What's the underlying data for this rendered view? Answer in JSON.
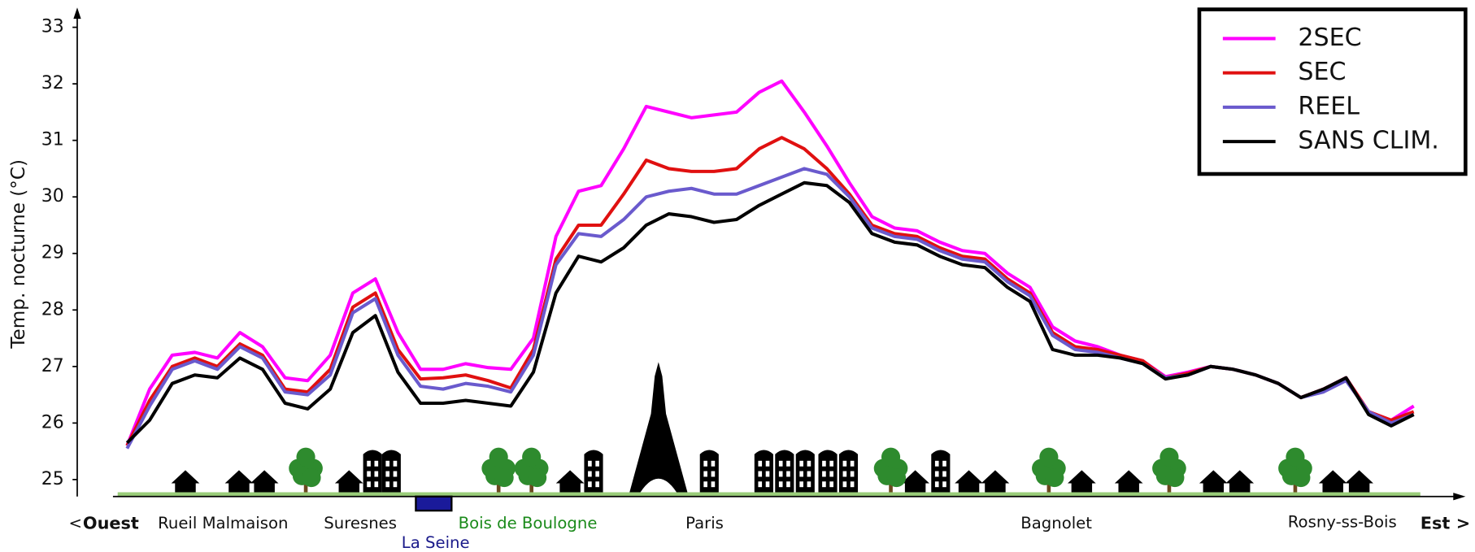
{
  "chart_data": {
    "type": "line",
    "y_label": "Temp. nocturne (°C)",
    "ylim": [
      24.7,
      33.3
    ],
    "yticks": [
      25,
      26,
      27,
      28,
      29,
      30,
      31,
      32,
      33
    ],
    "legend": "upper right",
    "direction_labels": {
      "west_arrow": "<",
      "west": "Ouest",
      "east": "Est",
      "east_arrow": ">"
    },
    "annotations": [
      {
        "text": "Rueil Malmaison",
        "color": "#111111"
      },
      {
        "text": "Suresnes",
        "color": "#111111"
      },
      {
        "text": "Bois de Boulogne",
        "color": "#1a8a1a"
      },
      {
        "text": "La Seine",
        "color": "#1a1a8a"
      },
      {
        "text": "Paris",
        "color": "#111111"
      },
      {
        "text": "Bagnolet",
        "color": "#111111"
      },
      {
        "text": "Rosny-ss-Bois",
        "color": "#111111"
      }
    ],
    "series": [
      {
        "name": "2SEC",
        "color": "#ff00ff",
        "values": [
          25.6,
          26.6,
          27.2,
          27.25,
          27.15,
          27.6,
          27.35,
          26.8,
          26.75,
          27.2,
          28.3,
          28.55,
          27.6,
          26.95,
          26.95,
          27.05,
          26.98,
          26.95,
          27.5,
          29.3,
          30.1,
          30.2,
          30.85,
          31.6,
          31.5,
          31.4,
          31.45,
          31.5,
          31.85,
          32.05,
          31.5,
          30.9,
          30.25,
          29.65,
          29.45,
          29.4,
          29.2,
          29.05,
          29.0,
          28.65,
          28.4,
          27.7,
          27.45,
          27.35,
          27.2,
          27.1,
          26.82,
          26.9,
          27.0,
          26.95,
          26.85,
          26.7,
          26.45,
          26.6,
          26.8,
          26.2,
          26.05,
          26.3
        ]
      },
      {
        "name": "SEC",
        "color": "#e01010",
        "values": [
          25.6,
          26.4,
          27.0,
          27.15,
          27.0,
          27.4,
          27.2,
          26.6,
          26.55,
          26.95,
          28.05,
          28.3,
          27.3,
          26.78,
          26.8,
          26.85,
          26.75,
          26.62,
          27.3,
          28.9,
          29.5,
          29.5,
          30.05,
          30.65,
          30.5,
          30.45,
          30.45,
          30.5,
          30.85,
          31.05,
          30.85,
          30.5,
          30.05,
          29.5,
          29.35,
          29.3,
          29.1,
          28.95,
          28.9,
          28.55,
          28.3,
          27.6,
          27.35,
          27.3,
          27.2,
          27.1,
          26.8,
          26.88,
          27.0,
          26.95,
          26.85,
          26.7,
          26.45,
          26.6,
          26.8,
          26.2,
          26.05,
          26.2
        ]
      },
      {
        "name": "REEL",
        "color": "#6a5acd",
        "values": [
          25.55,
          26.3,
          26.95,
          27.1,
          26.95,
          27.35,
          27.15,
          26.55,
          26.5,
          26.85,
          27.95,
          28.2,
          27.2,
          26.65,
          26.6,
          26.7,
          26.65,
          26.55,
          27.2,
          28.8,
          29.35,
          29.3,
          29.6,
          30.0,
          30.1,
          30.15,
          30.05,
          30.05,
          30.2,
          30.35,
          30.5,
          30.4,
          30.0,
          29.45,
          29.3,
          29.25,
          29.05,
          28.9,
          28.85,
          28.5,
          28.25,
          27.55,
          27.3,
          27.25,
          27.15,
          27.05,
          26.8,
          26.85,
          27.0,
          26.95,
          26.85,
          26.7,
          26.45,
          26.55,
          26.75,
          26.2,
          26.0,
          26.15
        ]
      },
      {
        "name": "SANS CLIM.",
        "color": "#000000",
        "values": [
          25.65,
          26.05,
          26.7,
          26.85,
          26.8,
          27.15,
          26.95,
          26.35,
          26.25,
          26.6,
          27.6,
          27.9,
          26.9,
          26.35,
          26.35,
          26.4,
          26.35,
          26.3,
          26.9,
          28.3,
          28.95,
          28.85,
          29.1,
          29.5,
          29.7,
          29.65,
          29.55,
          29.6,
          29.85,
          30.05,
          30.25,
          30.2,
          29.9,
          29.35,
          29.2,
          29.15,
          28.95,
          28.8,
          28.75,
          28.4,
          28.15,
          27.3,
          27.2,
          27.2,
          27.15,
          27.05,
          26.78,
          26.85,
          27.0,
          26.95,
          26.85,
          26.7,
          26.45,
          26.6,
          26.8,
          26.15,
          25.95,
          26.15
        ]
      }
    ]
  }
}
